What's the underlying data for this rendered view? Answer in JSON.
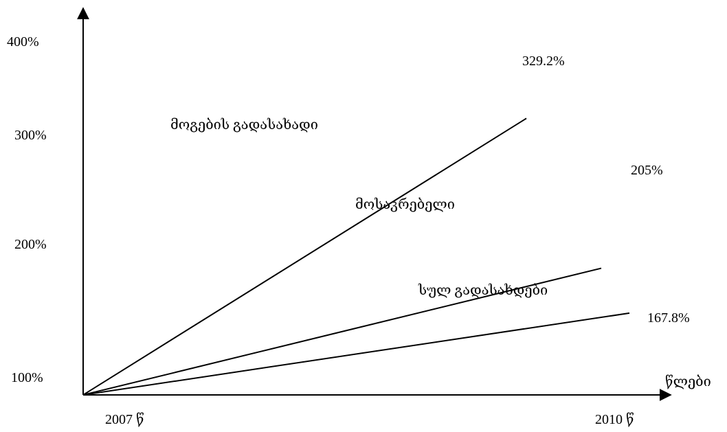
{
  "chart_data": {
    "type": "line",
    "x": [
      "2007 წ",
      "2010 წ"
    ],
    "xlabel": "წლები",
    "ylabel": "",
    "yticks": [
      "100%",
      "200%",
      "300%",
      "400%"
    ],
    "ylim": [
      100,
      400
    ],
    "grid": false,
    "series": [
      {
        "name": "მოგების გადასახადი",
        "values": [
          100,
          329.2
        ],
        "end_label": "329.2%"
      },
      {
        "name": "მოსაკრებელი",
        "values": [
          100,
          205
        ],
        "end_label": "205%"
      },
      {
        "name": "სულ გადასახდები",
        "values": [
          100,
          167.8
        ],
        "end_label": "167.8%"
      }
    ]
  }
}
